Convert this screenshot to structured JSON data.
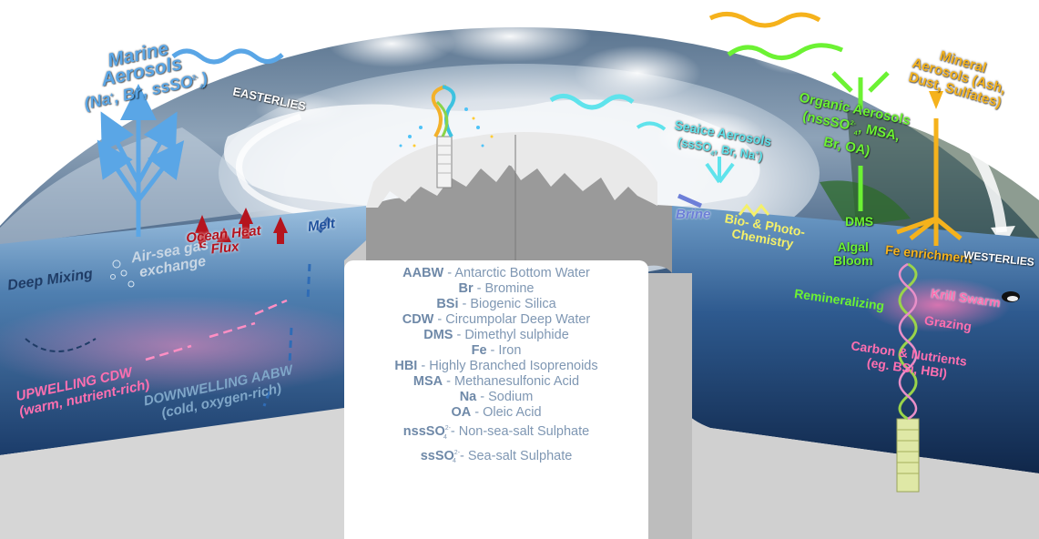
{
  "colors": {
    "ocean_deep": "#1c3f6e",
    "ocean_light": "#7fa6c8",
    "ice": "#eef2f6",
    "crust": "#c7c7c7",
    "upwelling": "#ff6fb0",
    "heat": "#b5141e",
    "melt": "#1d4f9c",
    "seaice_aerosol": "#5fe3ec",
    "organic": "#6cf233",
    "mineral": "#f5b21c",
    "biochem": "#f4f06a",
    "marine_aerosol": "#5aa6e6"
  },
  "labels": {
    "marine": {
      "l1": "Marine",
      "l2": "Aerosols",
      "l3a": "(Na",
      "l3b": ", Br",
      "l3c": ", ssSO",
      "l3d": ")"
    },
    "easterlies": "EASTERLIES",
    "ocean_heat": {
      "l1": "Ocean Heat",
      "l2": "Flux"
    },
    "melt": "Melt",
    "air_sea": {
      "l1": "Air-sea gas",
      "l2": "exchange"
    },
    "deep_mixing": "Deep Mixing",
    "upwelling": {
      "l1": "UPWELLING CDW",
      "l2": "(warm, nutrient-rich)"
    },
    "downwelling": {
      "l1": "DOWNWELLING AABW",
      "l2": "(cold, oxygen-rich)"
    },
    "seaice": {
      "l1": "Seaice Aerosols",
      "l2": "(ssSO",
      "l2b": ", Br, Na",
      "l2c": ")"
    },
    "organic": {
      "l1": "Organic Aerosols",
      "l2a": "(nssSO",
      "l2b": ", MSA,",
      "l3": "Br, OA)"
    },
    "mineral": {
      "l1": "Mineral",
      "l2": "Aerosols (Ash,",
      "l3": "Dust, Sulfates)"
    },
    "brine": "Brine",
    "biochem": {
      "l1": "Bio- & Photo-",
      "l2": "Chemistry"
    },
    "dms": "DMS",
    "algal": {
      "l1": "Algal",
      "l2": "Bloom"
    },
    "fe": "Fe enrichment",
    "westerlies": "WESTERLIES",
    "krill": "Krill Swarm",
    "remin": "Remineralizing",
    "grazing": "Grazing",
    "carbon": {
      "l1": "Carbon & Nutrients",
      "l2": "(eg. BSi, HBI)"
    }
  },
  "legend": [
    {
      "abbr": "AABW",
      "sep": " - ",
      "desc": "Antarctic Bottom Water"
    },
    {
      "abbr": "Br",
      "sep": " - ",
      "desc": "Bromine"
    },
    {
      "abbr": "BSi",
      "sep": " - ",
      "desc": "Biogenic Silica"
    },
    {
      "abbr": "CDW",
      "sep": " - ",
      "desc": "Circumpolar Deep Water"
    },
    {
      "abbr": "DMS",
      "sep": " -  ",
      "desc": "Dimethyl sulphide"
    },
    {
      "abbr": "Fe",
      "sep": " - ",
      "desc": "Iron"
    },
    {
      "abbr": "HBI",
      "sep": " - ",
      "desc": "Highly Branched Isoprenoids"
    },
    {
      "abbr": "MSA",
      "sep": " - ",
      "desc": "Methanesulfonic Acid"
    },
    {
      "abbr": "Na",
      "sep": " - ",
      "desc": "Sodium"
    },
    {
      "abbr": "OA",
      "sep": " - ",
      "desc": "Oleic Acid"
    },
    {
      "abbr": "nssSO",
      "sup": "2-",
      "sub": "4",
      "sep": " - ",
      "desc": "Non-sea-salt Sulphate"
    },
    {
      "abbr": "ssSO",
      "sup": "2-",
      "sub": "4",
      "sep": " - ",
      "desc": "Sea-salt Sulphate"
    }
  ]
}
